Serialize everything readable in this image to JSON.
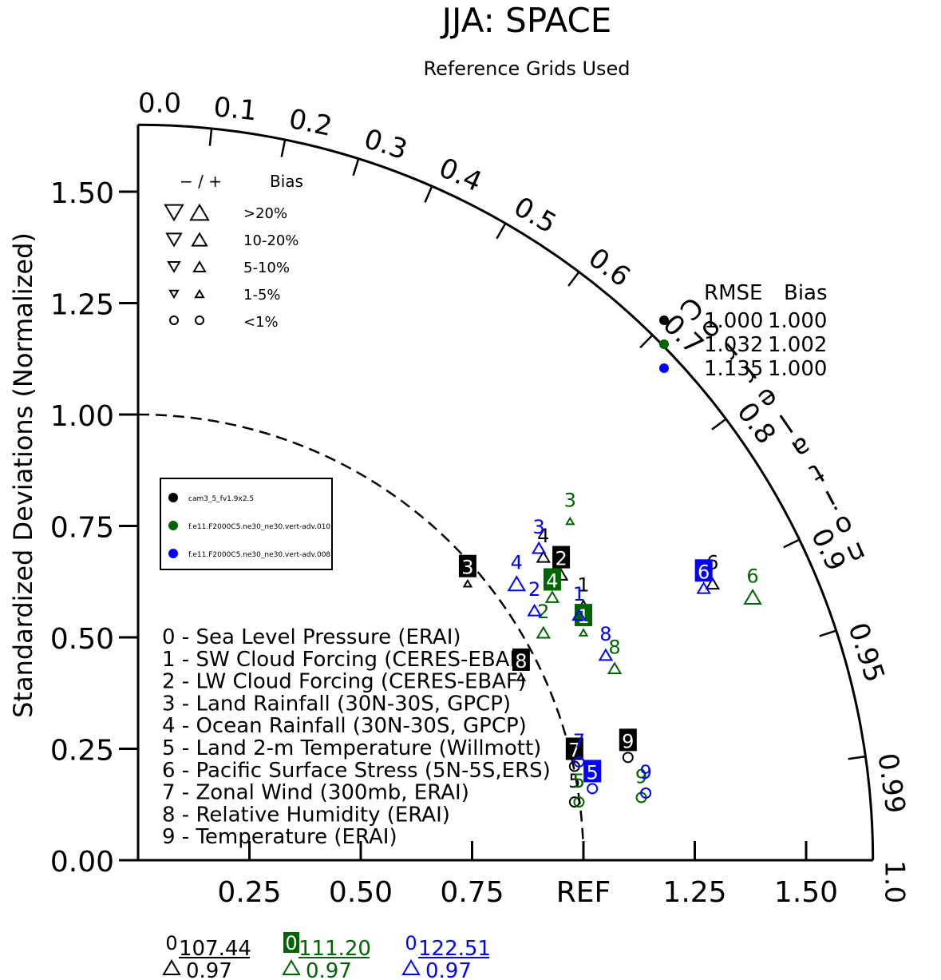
{
  "title": "JJA: SPACE",
  "subtitle": "Reference Grids Used",
  "chart_data": {
    "type": "scatter",
    "plot_kind": "taylor-diagram",
    "title": "JJA: SPACE",
    "subtitle": "Reference Grids Used",
    "ylabel": "Standardized Deviations (Normalized)",
    "arc_label": "Correlation",
    "ylim": [
      0,
      1.65
    ],
    "y_ticks": [
      "0.00",
      "0.25",
      "0.50",
      "0.75",
      "1.00",
      "1.25",
      "1.50"
    ],
    "x_ticks": [
      "0.25",
      "0.50",
      "0.75",
      "REF",
      "1.25",
      "1.50"
    ],
    "x_tick_values": [
      0.25,
      0.5,
      0.75,
      1.0,
      1.25,
      1.5
    ],
    "correlation_ticks": [
      "0.0",
      "0.1",
      "0.2",
      "0.3",
      "0.4",
      "0.5",
      "0.6",
      "0.7",
      "0.8",
      "0.9",
      "0.95",
      "0.99",
      "1.0"
    ],
    "correlation_values": [
      0.0,
      0.1,
      0.2,
      0.3,
      0.4,
      0.5,
      0.6,
      0.7,
      0.8,
      0.9,
      0.95,
      0.99,
      1.0
    ],
    "bias_legend": {
      "header_sign": "− / +",
      "header_label": "Bias",
      "rows": [
        "&gt;20%",
        "10-20%",
        "5-10%",
        "1-5%",
        "&lt;1%"
      ]
    },
    "series": [
      {
        "name": "cam3_5_fv1.9x2.5",
        "color": "#000000"
      },
      {
        "name": "f.e11.F2000C5.ne30_ne30.vert-adv.010",
        "color": "#006400"
      },
      {
        "name": "f.e11.F2000C5.ne30_ne30.vert-adv.008",
        "color": "#0000ff"
      }
    ],
    "variables": [
      "0 - Sea Level Pressure (ERAI)",
      "1 - SW Cloud Forcing (CERES-EBAF)",
      "2 - LW Cloud Forcing (CERES-EBAF)",
      "3 - Land Rainfall (30N-30S, GPCP)",
      "4 - Ocean Rainfall (30N-30S, GPCP)",
      "5 - Land 2-m Temperature (Willmott)",
      "6 - Pacific Surface Stress (5N-5S,ERS)",
      "7 - Zonal Wind (300mb, ERAI)",
      "8 - Relative Humidity (ERAI)",
      "9 - Temperature (ERAI)"
    ],
    "points": [
      {
        "series": 0,
        "id": "1",
        "x": 1.0,
        "y": 0.61,
        "boxed": false,
        "marker": "tri-up"
      },
      {
        "series": 0,
        "id": "2",
        "x": 0.95,
        "y": 0.68,
        "boxed": true,
        "marker": "tri-up"
      },
      {
        "series": 0,
        "id": "3",
        "x": 0.74,
        "y": 0.66,
        "boxed": true,
        "marker": "tri-up-sm"
      },
      {
        "series": 0,
        "id": "4",
        "x": 0.91,
        "y": 0.72,
        "boxed": false,
        "marker": "tri-up"
      },
      {
        "series": 0,
        "id": "6",
        "x": 1.29,
        "y": 0.66,
        "boxed": false,
        "marker": "tri-up"
      },
      {
        "series": 0,
        "id": "7",
        "x": 0.98,
        "y": 0.25,
        "boxed": true,
        "marker": "circle"
      },
      {
        "series": 0,
        "id": "8",
        "x": 0.86,
        "y": 0.45,
        "boxed": true,
        "marker": "tri-up-sm"
      },
      {
        "series": 0,
        "id": "9",
        "x": 1.1,
        "y": 0.27,
        "boxed": true,
        "marker": "circle"
      },
      {
        "series": 0,
        "id": "5",
        "x": 0.98,
        "y": 0.17,
        "boxed": false,
        "marker": "circle"
      },
      {
        "series": 1,
        "id": "1",
        "x": 1.0,
        "y": 0.55,
        "boxed": true,
        "marker": "tri-up-sm"
      },
      {
        "series": 1,
        "id": "2",
        "x": 0.91,
        "y": 0.55,
        "boxed": false,
        "marker": "tri-up"
      },
      {
        "series": 1,
        "id": "3",
        "x": 0.97,
        "y": 0.8,
        "boxed": false,
        "marker": "tri-up-sm"
      },
      {
        "series": 1,
        "id": "4",
        "x": 0.93,
        "y": 0.63,
        "boxed": true,
        "marker": "tri-up"
      },
      {
        "series": 1,
        "id": "5",
        "x": 0.99,
        "y": 0.17,
        "boxed": false,
        "marker": "circle"
      },
      {
        "series": 1,
        "id": "6",
        "x": 1.38,
        "y": 0.63,
        "boxed": false,
        "marker": "tri-up-lg"
      },
      {
        "series": 1,
        "id": "8",
        "x": 1.07,
        "y": 0.47,
        "boxed": false,
        "marker": "tri-up"
      },
      {
        "series": 1,
        "id": "9",
        "x": 1.13,
        "y": 0.18,
        "boxed": false,
        "marker": "circle"
      },
      {
        "series": 2,
        "id": "1",
        "x": 0.99,
        "y": 0.59,
        "boxed": false,
        "marker": "tri-up"
      },
      {
        "series": 2,
        "id": "2",
        "x": 0.89,
        "y": 0.6,
        "boxed": false,
        "marker": "tri-up"
      },
      {
        "series": 2,
        "id": "3",
        "x": 0.9,
        "y": 0.74,
        "boxed": false,
        "marker": "tri-up"
      },
      {
        "series": 2,
        "id": "4",
        "x": 0.85,
        "y": 0.66,
        "boxed": false,
        "marker": "tri-up-lg"
      },
      {
        "series": 2,
        "id": "5",
        "x": 1.02,
        "y": 0.2,
        "boxed": true,
        "marker": "circle"
      },
      {
        "series": 2,
        "id": "6",
        "x": 1.27,
        "y": 0.65,
        "boxed": true,
        "marker": "tri-up"
      },
      {
        "series": 2,
        "id": "7",
        "x": 0.99,
        "y": 0.26,
        "boxed": false,
        "marker": "circle"
      },
      {
        "series": 2,
        "id": "8",
        "x": 1.05,
        "y": 0.5,
        "boxed": false,
        "marker": "tri-up"
      },
      {
        "series": 2,
        "id": "9",
        "x": 1.14,
        "y": 0.19,
        "boxed": false,
        "marker": "circle"
      }
    ],
    "summary_header": {
      "rmse": "RMSE",
      "bias": "Bias"
    },
    "summary": [
      {
        "series": 0,
        "rmse": "1.000",
        "bias": "1.000"
      },
      {
        "series": 1,
        "rmse": "1.032",
        "bias": "1.002"
      },
      {
        "series": 2,
        "rmse": "1.135",
        "bias": "1.000"
      }
    ],
    "footer": [
      {
        "series": 0,
        "mark": "0",
        "value": "107.44",
        "ratio": "0.97"
      },
      {
        "series": 1,
        "mark": "0",
        "value": "111.20",
        "ratio": "0.97"
      },
      {
        "series": 2,
        "mark": "0",
        "value": "122.51",
        "ratio": "0.97"
      }
    ]
  }
}
